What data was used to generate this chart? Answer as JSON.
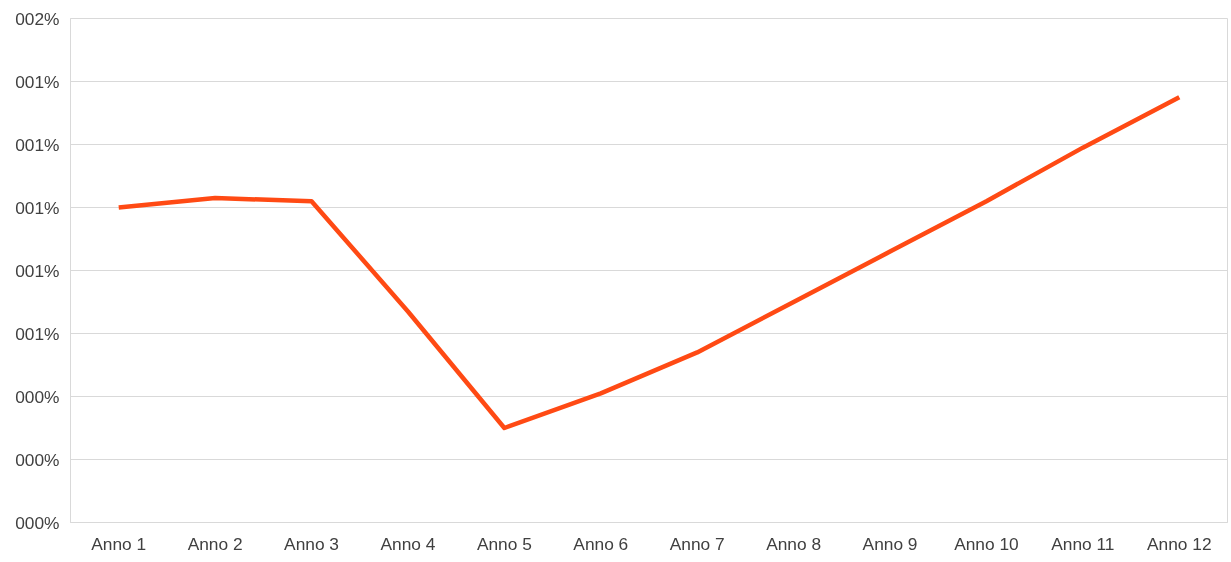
{
  "chart_data": {
    "type": "line",
    "categories": [
      "Anno 1",
      "Anno 2",
      "Anno 3",
      "Anno 4",
      "Anno 5",
      "Anno 6",
      "Anno 7",
      "Anno 8",
      "Anno 9",
      "Anno 10",
      "Anno 11",
      "Anno 12"
    ],
    "series": [
      {
        "color": "#ff4a14",
        "values": [
          1.0,
          1.03,
          1.02,
          0.67,
          0.3,
          0.41,
          0.54,
          0.7,
          0.86,
          1.02,
          1.19,
          1.35
        ]
      }
    ],
    "ylim": [
      0,
      1.6
    ],
    "yticks": [
      {
        "value": 0,
        "label": "000%"
      },
      {
        "value": 0.2,
        "label": "000%"
      },
      {
        "value": 0.4,
        "label": "000%"
      },
      {
        "value": 0.6,
        "label": "001%"
      },
      {
        "value": 0.8,
        "label": "001%"
      },
      {
        "value": 1.0,
        "label": "001%"
      },
      {
        "value": 1.2,
        "label": "001%"
      },
      {
        "value": 1.4,
        "label": "001%"
      },
      {
        "value": 1.6,
        "label": "002%"
      }
    ],
    "grid": "y",
    "marker": "none",
    "line_style": "solid"
  }
}
